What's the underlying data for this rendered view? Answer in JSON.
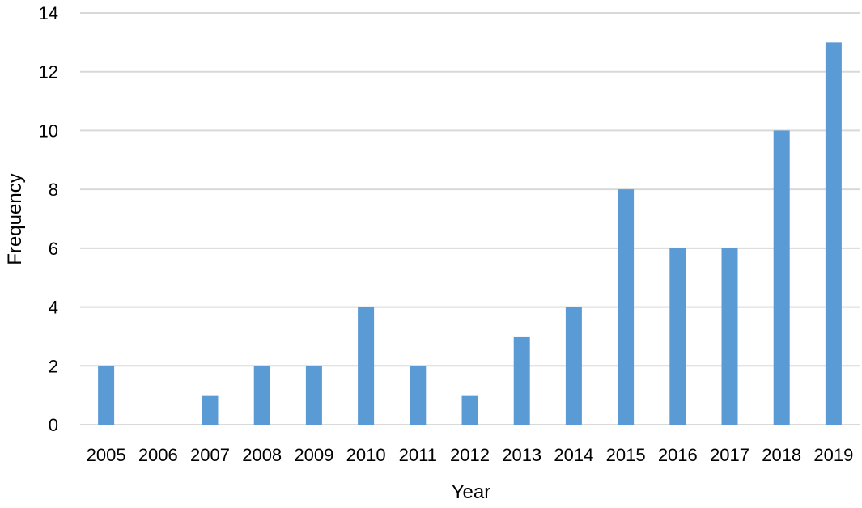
{
  "chart_data": {
    "type": "bar",
    "title": "",
    "xlabel": "Year",
    "ylabel": "Frequency",
    "categories": [
      "2005",
      "2006",
      "2007",
      "2008",
      "2009",
      "2010",
      "2011",
      "2012",
      "2013",
      "2014",
      "2015",
      "2016",
      "2017",
      "2018",
      "2019"
    ],
    "values": [
      2,
      0,
      1,
      2,
      2,
      4,
      2,
      1,
      3,
      4,
      8,
      6,
      6,
      10,
      13
    ],
    "ylim": [
      0,
      14
    ],
    "yticks": [
      0,
      2,
      4,
      6,
      8,
      10,
      12,
      14
    ],
    "grid": "horizontal",
    "legend": "none",
    "bar_color": "#5B9BD5",
    "grid_color": "#D9D9D9"
  }
}
